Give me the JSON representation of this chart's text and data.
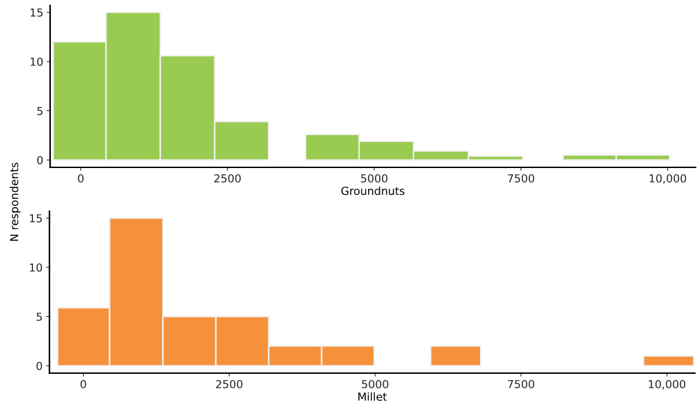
{
  "chart_data": [
    {
      "type": "histogram",
      "xlabel": "Groundnuts",
      "ylabel": "N respondents",
      "color": "#99cb50",
      "bins": [
        -470,
        430,
        1356,
        2282,
        3200,
        3830,
        4742,
        5670,
        6604,
        7530,
        8220,
        9124,
        10030
      ],
      "values": [
        12,
        15,
        10.6,
        3.9,
        0,
        2.6,
        1.9,
        0.9,
        0.4,
        0,
        0.5,
        0.5
      ],
      "xlim": [
        -522,
        10475
      ],
      "ylim": [
        -0.75,
        15.7
      ],
      "xticks": [
        0,
        2500,
        5000,
        7500,
        {
          "value": 10000,
          "label": "10,000"
        }
      ],
      "yticks": [
        0,
        5,
        10,
        15
      ],
      "grid": false
    },
    {
      "type": "histogram",
      "xlabel": "Millet",
      "color": "#f5903b",
      "bins": [
        -440,
        450,
        1364,
        2272,
        3177,
        4085,
        4985,
        5953,
        6810,
        9600,
        10460
      ],
      "values": [
        5.9,
        15,
        5,
        5,
        2,
        2,
        0,
        2,
        0,
        1
      ],
      "xlim": [
        -581,
        10480
      ],
      "ylim": [
        -0.75,
        15.7
      ],
      "xticks": [
        0,
        2500,
        5000,
        7500,
        {
          "value": 10000,
          "label": "10,000"
        }
      ],
      "yticks": [
        0,
        5,
        10,
        15
      ],
      "grid": false
    }
  ]
}
